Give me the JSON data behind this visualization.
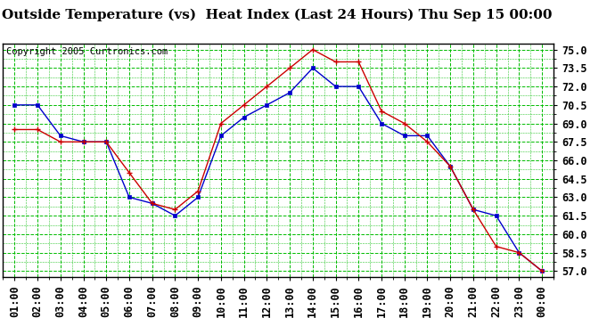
{
  "title": "Outside Temperature (vs)  Heat Index (Last 24 Hours) Thu Sep 15 00:00",
  "copyright": "Copyright 2005 Curtronics.com",
  "x_labels": [
    "01:00",
    "02:00",
    "03:00",
    "04:00",
    "05:00",
    "06:00",
    "07:00",
    "08:00",
    "09:00",
    "10:00",
    "11:00",
    "12:00",
    "13:00",
    "14:00",
    "15:00",
    "16:00",
    "17:00",
    "18:00",
    "19:00",
    "20:00",
    "21:00",
    "22:00",
    "23:00",
    "00:00"
  ],
  "blue_data": [
    70.5,
    70.5,
    68.0,
    67.5,
    67.5,
    63.0,
    62.5,
    61.5,
    63.0,
    68.0,
    69.5,
    70.5,
    71.5,
    73.5,
    72.0,
    72.0,
    69.0,
    68.0,
    68.0,
    65.5,
    62.0,
    61.5,
    58.5,
    57.0
  ],
  "red_data": [
    68.5,
    68.5,
    67.5,
    67.5,
    67.5,
    65.0,
    62.5,
    62.0,
    63.5,
    69.0,
    70.5,
    72.0,
    73.5,
    75.0,
    74.0,
    74.0,
    70.0,
    69.0,
    67.5,
    65.5,
    62.0,
    59.0,
    58.5,
    57.0
  ],
  "ylim_min": 56.5,
  "ylim_max": 75.5,
  "yticks": [
    57.0,
    58.5,
    60.0,
    61.5,
    63.0,
    64.5,
    66.0,
    67.5,
    69.0,
    70.5,
    72.0,
    73.5,
    75.0
  ],
  "blue_color": "#0000cc",
  "red_color": "#cc0000",
  "bg_color": "#ffffff",
  "plot_bg_color": "#ffffff",
  "grid_color": "#00bb00",
  "title_fontsize": 11,
  "copyright_fontsize": 7.5,
  "tick_fontsize": 8.5
}
